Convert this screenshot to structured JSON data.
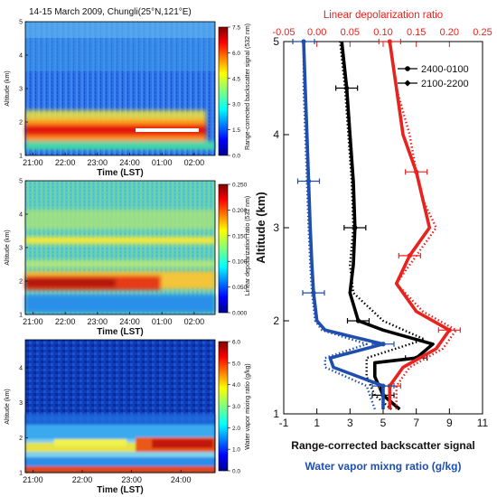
{
  "chart_data": [
    {
      "type": "heatmap",
      "title": "14-15 March 2009,   Chungli(25°N,121°E)",
      "xlabel": "Time (LST)",
      "ylabel": "Altitude (km)",
      "x_ticks": [
        "21:00",
        "22:00",
        "23:00",
        "24:00",
        "01:00",
        "02:00"
      ],
      "y_ticks": [
        "1",
        "2",
        "3",
        "4",
        "5"
      ],
      "ylim": [
        1,
        5
      ],
      "colorbar": {
        "label": "Range-corrected backscatter signal (532 nm)",
        "ticks": [
          "0.0",
          "1.5",
          "3.0",
          "4.5",
          "6.0",
          "7.5"
        ],
        "range": [
          0,
          7.5
        ]
      },
      "features": [
        {
          "desc": "strong layer",
          "altitude_km": 1.75,
          "value": 7.0
        },
        {
          "desc": "upper layer",
          "altitude_km": 2.2,
          "value": 4.0
        }
      ]
    },
    {
      "type": "heatmap",
      "xlabel": "Time (LST)",
      "ylabel": "Altitude (km)",
      "x_ticks": [
        "21:00",
        "22:00",
        "23:00",
        "24:00",
        "01:00",
        "02:00"
      ],
      "y_ticks": [
        "1",
        "2",
        "3",
        "4",
        "5"
      ],
      "ylim": [
        1,
        5
      ],
      "colorbar": {
        "label": "Linear depolarization ratio (532 nm)",
        "ticks": [
          "0.000",
          "0.050",
          "0.100",
          "0.150",
          "0.200",
          "0.250"
        ],
        "range": [
          0,
          0.25
        ]
      },
      "features": [
        {
          "desc": "dust layer",
          "altitude_km": 1.85,
          "value": 0.23
        },
        {
          "desc": "thin layer",
          "altitude_km": 3.05,
          "value": 0.18
        }
      ]
    },
    {
      "type": "heatmap",
      "xlabel": "Time (LST)",
      "ylabel": "Altitude (km)",
      "x_ticks": [
        "21:00",
        "22:00",
        "23:00",
        "24:00"
      ],
      "y_ticks": [
        "1",
        "2",
        "3",
        "4"
      ],
      "ylim": [
        1,
        4.8
      ],
      "colorbar": {
        "label": "Water vapor mixing ratio (g/kg)",
        "ticks": [
          "0.0",
          "1.0",
          "2.0",
          "3.0",
          "4.0",
          "5.0",
          "6.0"
        ],
        "range": [
          0,
          6
        ]
      },
      "features": [
        {
          "desc": "moist layer",
          "altitude_km": 1.75,
          "value": 5.5
        }
      ]
    },
    {
      "type": "line",
      "ylabel": "Altitude (km)",
      "xlabel": "Range-corrected backscatter signal",
      "xlabel2": "Water vapor mixng ratio (g/kg)",
      "x2label_top": "Linear depolarization ratio",
      "xlim": [
        -1,
        11
      ],
      "ylim": [
        1,
        5
      ],
      "x_ticks": [
        "-1",
        "1",
        "3",
        "5",
        "7",
        "9",
        "11"
      ],
      "y_ticks": [
        "1",
        "2",
        "3",
        "4",
        "5"
      ],
      "top_xlim": [
        -0.05,
        0.25
      ],
      "top_x_ticks": [
        "-0.05",
        "0.00",
        "0.05",
        "0.10",
        "0.15",
        "0.20",
        "0.25"
      ],
      "legend": [
        "2400-0100",
        "2100-2200"
      ],
      "legend_placement": "top-right",
      "colors": {
        "backscatter": "#000000",
        "depolarization": "#e8231f",
        "water_vapor": "#1f4fae"
      },
      "series": [
        {
          "quantity": "backscatter",
          "name": "2400-0100",
          "y": [
            1.05,
            1.2,
            1.4,
            1.55,
            1.6,
            1.75,
            1.9,
            2.0,
            2.3,
            2.6,
            3.0,
            3.5,
            4.0,
            4.5,
            5.0
          ],
          "x": [
            6.0,
            5.0,
            4.5,
            4.5,
            7.0,
            8.0,
            5.0,
            3.5,
            3.0,
            3.2,
            3.3,
            3.2,
            3.0,
            2.8,
            2.5
          ]
        },
        {
          "quantity": "backscatter",
          "name": "2100-2200",
          "y": [
            1.05,
            1.2,
            1.4,
            1.6,
            1.8,
            2.0,
            2.3,
            2.6,
            3.0,
            3.5,
            4.0,
            4.5,
            5.0
          ],
          "x": [
            5.5,
            4.5,
            4.0,
            4.0,
            7.5,
            5.0,
            3.2,
            3.0,
            3.2,
            3.1,
            2.9,
            2.7,
            2.4
          ]
        },
        {
          "quantity": "depolarization",
          "name": "2400-0100",
          "y": [
            1.05,
            1.3,
            1.5,
            1.7,
            1.9,
            2.1,
            2.4,
            2.7,
            3.0,
            3.3,
            3.6,
            4.0,
            4.5,
            5.0
          ],
          "x": [
            0.11,
            0.11,
            0.13,
            0.18,
            0.2,
            0.15,
            0.12,
            0.14,
            0.17,
            0.16,
            0.15,
            0.13,
            0.12,
            0.11
          ]
        },
        {
          "quantity": "depolarization",
          "name": "2100-2200",
          "y": [
            1.05,
            1.3,
            1.5,
            1.7,
            1.9,
            2.1,
            2.4,
            2.7,
            3.0,
            3.3,
            3.6,
            4.0,
            4.5,
            5.0
          ],
          "x": [
            0.12,
            0.12,
            0.14,
            0.19,
            0.21,
            0.16,
            0.12,
            0.15,
            0.18,
            0.16,
            0.15,
            0.14,
            0.12,
            0.11
          ]
        },
        {
          "quantity": "water_vapor",
          "name": "2400-0100",
          "y": [
            1.05,
            1.3,
            1.5,
            1.6,
            1.75,
            1.9,
            2.0,
            2.3,
            2.6,
            3.0,
            3.5,
            4.0,
            4.5,
            5.0
          ],
          "x": [
            5.0,
            5.0,
            2.0,
            1.8,
            5.0,
            1.5,
            1.0,
            0.8,
            0.7,
            0.6,
            0.5,
            0.4,
            0.3,
            0.2
          ]
        },
        {
          "quantity": "water_vapor",
          "name": "2100-2200",
          "y": [
            1.05,
            1.3,
            1.5,
            1.6,
            1.75,
            1.9,
            2.0,
            2.3,
            2.6,
            3.0,
            3.5,
            4.0,
            4.5,
            5.0
          ],
          "x": [
            4.5,
            4.0,
            1.5,
            1.5,
            4.0,
            1.3,
            0.9,
            0.7,
            0.6,
            0.5,
            0.4,
            0.3,
            0.2,
            0.2
          ]
        }
      ]
    }
  ]
}
